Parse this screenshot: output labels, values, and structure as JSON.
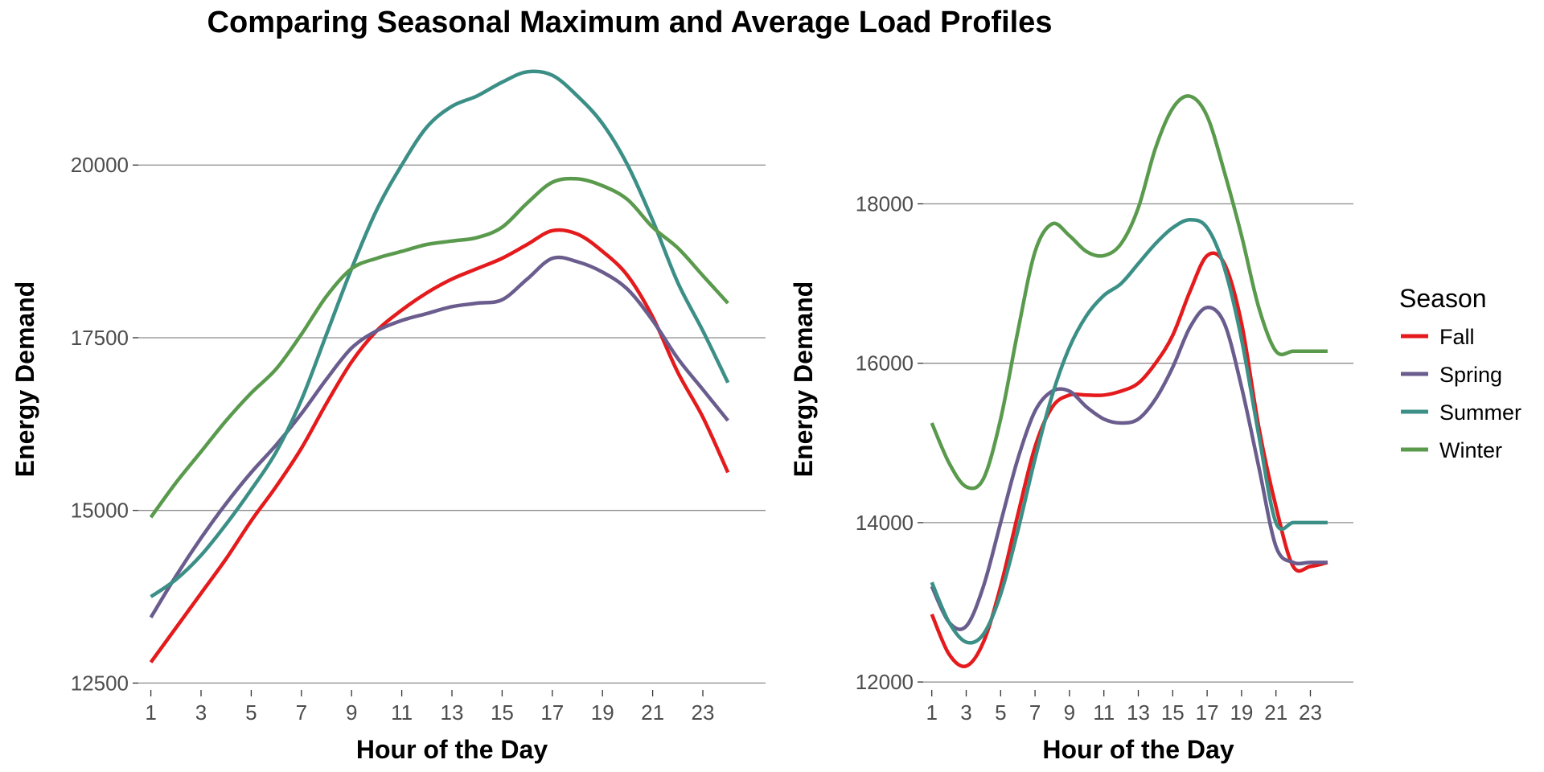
{
  "title": "Comparing Seasonal Maximum and Average Load Profiles",
  "legend": {
    "title": "Season",
    "entries": [
      {
        "name": "Fall",
        "color": "#e41a1c"
      },
      {
        "name": "Spring",
        "color": "#6a5d8e"
      },
      {
        "name": "Summer",
        "color": "#3b8f86"
      },
      {
        "name": "Winter",
        "color": "#5a9a4d"
      }
    ]
  },
  "chart_data": [
    {
      "type": "line",
      "xlabel": "Hour of the Day",
      "ylabel": "Energy Demand",
      "x": [
        1,
        2,
        3,
        4,
        5,
        6,
        7,
        8,
        9,
        10,
        11,
        12,
        13,
        14,
        15,
        16,
        17,
        18,
        19,
        20,
        21,
        22,
        23,
        24
      ],
      "xticks": [
        1,
        3,
        5,
        7,
        9,
        11,
        13,
        15,
        17,
        19,
        21,
        23
      ],
      "xlim": [
        0.5,
        25.5
      ],
      "yticks": [
        12500,
        15000,
        17500,
        20000
      ],
      "ylim": [
        12400,
        21400
      ],
      "series": [
        {
          "name": "Fall",
          "values": [
            12800,
            13300,
            13800,
            14300,
            14850,
            15350,
            15900,
            16550,
            17150,
            17600,
            17900,
            18150,
            18350,
            18500,
            18650,
            18850,
            19050,
            19000,
            18750,
            18400,
            17800,
            17000,
            16350,
            15550
          ]
        },
        {
          "name": "Spring",
          "values": [
            13450,
            14050,
            14600,
            15100,
            15550,
            15950,
            16400,
            16900,
            17350,
            17600,
            17750,
            17850,
            17950,
            18000,
            18050,
            18350,
            18650,
            18600,
            18450,
            18200,
            17750,
            17200,
            16750,
            16300
          ]
        },
        {
          "name": "Summer",
          "values": [
            13750,
            14000,
            14350,
            14800,
            15300,
            15850,
            16600,
            17550,
            18500,
            19350,
            20000,
            20550,
            20850,
            21000,
            21200,
            21350,
            21300,
            21000,
            20600,
            20000,
            19200,
            18300,
            17600,
            16850
          ]
        },
        {
          "name": "Winter",
          "values": [
            14900,
            15400,
            15850,
            16300,
            16700,
            17050,
            17550,
            18100,
            18500,
            18650,
            18750,
            18850,
            18900,
            18950,
            19100,
            19450,
            19750,
            19800,
            19700,
            19500,
            19100,
            18800,
            18400,
            18000
          ]
        }
      ]
    },
    {
      "type": "line",
      "xlabel": "Hour of the Day",
      "ylabel": "Energy Demand",
      "x": [
        1,
        2,
        3,
        4,
        5,
        6,
        7,
        8,
        9,
        10,
        11,
        12,
        13,
        14,
        15,
        16,
        17,
        18,
        19,
        20,
        21,
        22,
        23,
        24
      ],
      "xticks": [
        1,
        3,
        5,
        7,
        9,
        11,
        13,
        15,
        17,
        19,
        21,
        23
      ],
      "xlim": [
        0.5,
        25.5
      ],
      "yticks": [
        12000,
        14000,
        16000,
        18000
      ],
      "ylim": [
        11900,
        19700
      ],
      "series": [
        {
          "name": "Fall",
          "values": [
            12850,
            12350,
            12200,
            12500,
            13200,
            14100,
            14950,
            15450,
            15600,
            15600,
            15600,
            15650,
            15750,
            16000,
            16350,
            16900,
            17350,
            17250,
            16500,
            15200,
            14200,
            13450,
            13450,
            13500
          ]
        },
        {
          "name": "Spring",
          "values": [
            13200,
            12750,
            12700,
            13200,
            14000,
            14800,
            15400,
            15650,
            15650,
            15450,
            15300,
            15250,
            15300,
            15550,
            15950,
            16450,
            16700,
            16500,
            15700,
            14700,
            13700,
            13500,
            13500,
            13500
          ]
        },
        {
          "name": "Summer",
          "values": [
            13250,
            12750,
            12500,
            12600,
            13100,
            13900,
            14800,
            15600,
            16200,
            16600,
            16850,
            17000,
            17250,
            17500,
            17700,
            17800,
            17700,
            17200,
            16300,
            15100,
            14000,
            14000,
            14000,
            14000
          ]
        },
        {
          "name": "Winter",
          "values": [
            15250,
            14750,
            14450,
            14550,
            15300,
            16400,
            17400,
            17750,
            17600,
            17400,
            17350,
            17500,
            17950,
            18700,
            19200,
            19350,
            19100,
            18400,
            17600,
            16700,
            16150,
            16150,
            16150,
            16150
          ]
        }
      ]
    }
  ]
}
